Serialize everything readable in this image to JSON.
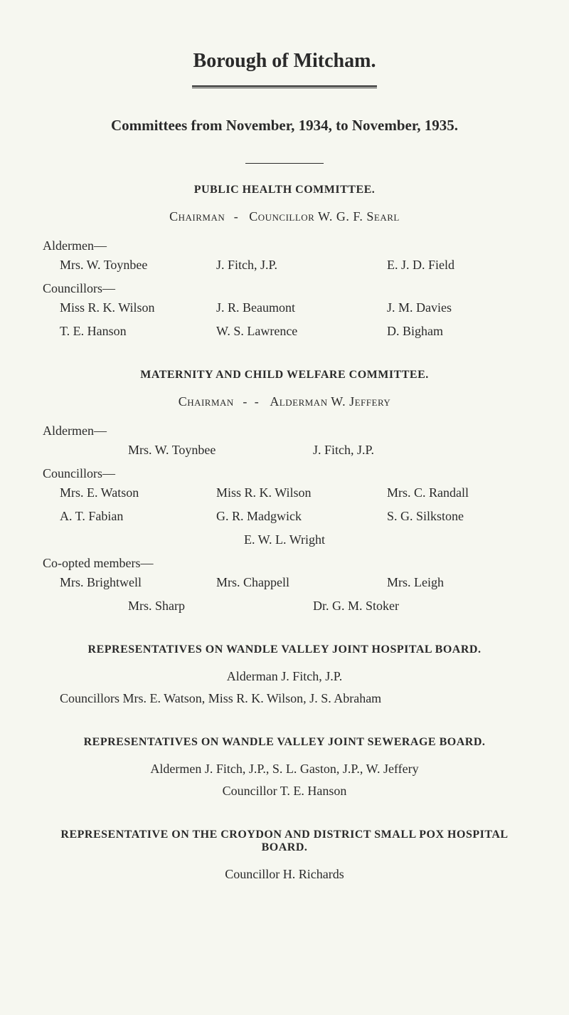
{
  "title": "Borough of Mitcham.",
  "subheading": "Committees from November, 1934, to November, 1935.",
  "sections": {
    "publicHealth": {
      "heading": "PUBLIC HEALTH COMMITTEE.",
      "chairmanLabel": "Chairman",
      "chairmanSep": "-",
      "chairmanName": "Councillor W. G. F. Searl",
      "aldermenLabel": "Aldermen—",
      "aldermenRows": [
        {
          "c1": "Mrs. W. Toynbee",
          "c2": "J. Fitch, J.P.",
          "c3": "E. J. D. Field"
        }
      ],
      "councillorsLabel": "Councillors—",
      "councillorsRows": [
        {
          "c1": "Miss R. K. Wilson",
          "c2": "J. R. Beaumont",
          "c3": "J. M. Davies"
        },
        {
          "c1": "T. E. Hanson",
          "c2": "W. S. Lawrence",
          "c3": "D. Bigham"
        }
      ]
    },
    "maternity": {
      "heading": "MATERNITY AND CHILD WELFARE COMMITTEE.",
      "chairmanLabel": "Chairman",
      "chairmanSep": "-  -",
      "chairmanName": "Alderman W. Jeffery",
      "aldermenLabel": "Aldermen—",
      "aldermenRow": {
        "c1": "Mrs. W. Toynbee",
        "c2": "J. Fitch, J.P."
      },
      "councillorsLabel": "Councillors—",
      "councillorsRows": [
        {
          "c1": "Mrs. E. Watson",
          "c2": "Miss R. K. Wilson",
          "c3": "Mrs. C. Randall"
        },
        {
          "c1": "A. T. Fabian",
          "c2": "G. R. Madgwick",
          "c3": "S. G. Silkstone"
        }
      ],
      "councillorsCenter": "E. W. L. Wright",
      "cooptedLabel": "Co-opted members—",
      "cooptedRows": [
        {
          "c1": "Mrs. Brightwell",
          "c2": "Mrs. Chappell",
          "c3": "Mrs. Leigh"
        }
      ],
      "cooptedRow2": {
        "c1": "Mrs. Sharp",
        "c2": "Dr. G. M. Stoker"
      }
    },
    "wandleHospital": {
      "heading": "REPRESENTATIVES ON WANDLE VALLEY JOINT HOSPITAL BOARD.",
      "line1": "Alderman J. Fitch, J.P.",
      "line2": "Councillors Mrs. E. Watson, Miss R. K. Wilson, J. S. Abraham"
    },
    "wandleSewerage": {
      "heading": "REPRESENTATIVES ON WANDLE VALLEY JOINT SEWERAGE BOARD.",
      "line1": "Aldermen J. Fitch, J.P., S. L. Gaston, J.P., W. Jeffery",
      "line2": "Councillor T. E. Hanson"
    },
    "croydon": {
      "heading": "REPRESENTATIVE ON THE CROYDON AND DISTRICT SMALL POX HOSPITAL BOARD.",
      "line1": "Councillor H. Richards"
    }
  }
}
